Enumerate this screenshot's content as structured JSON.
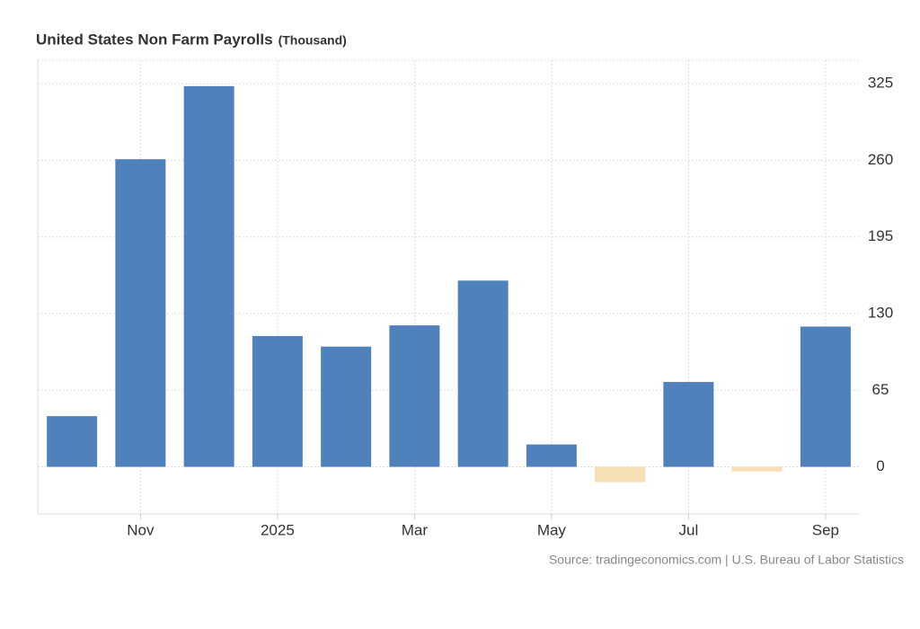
{
  "chart_data": {
    "type": "bar",
    "title": "United States Non Farm Payrolls",
    "subtitle": "(Thousand)",
    "source": "Source: tradingeconomics.com | U.S. Bureau of Labor Statistics",
    "categories": [
      null,
      "Nov",
      null,
      "2025",
      null,
      "Mar",
      null,
      "May",
      null,
      "Jul",
      null,
      "Sep"
    ],
    "values": [
      43,
      261,
      323,
      111,
      102,
      120,
      158,
      19,
      -13,
      72,
      -4,
      119
    ],
    "color": "#4f81bd",
    "negative_color": "#f7dfb5",
    "ylim": [
      -40,
      345
    ],
    "yticks": [
      0,
      65,
      130,
      195,
      260,
      325
    ],
    "grid": true
  }
}
